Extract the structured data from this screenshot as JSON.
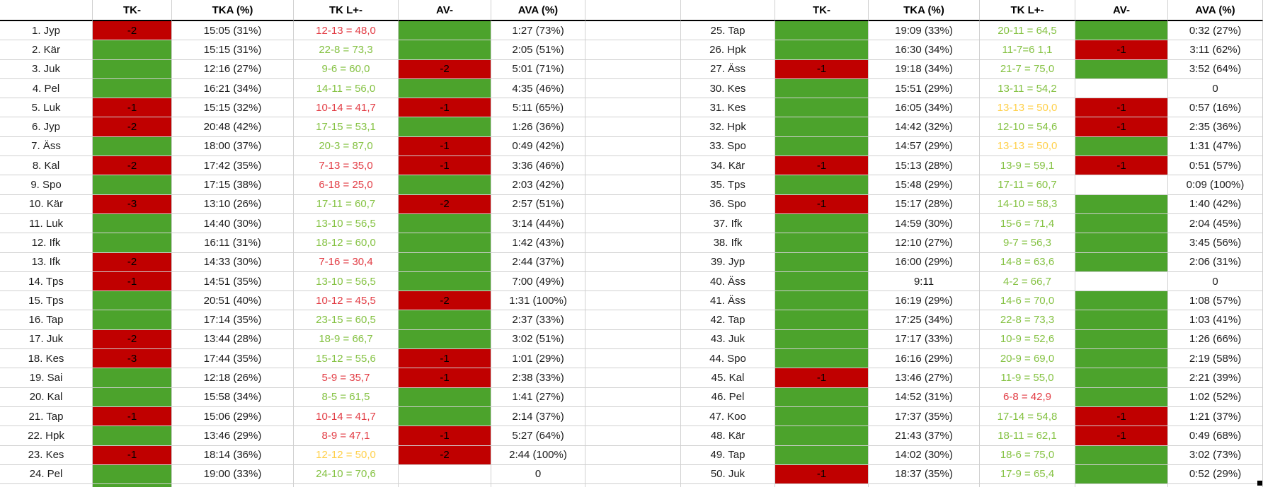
{
  "colors": {
    "fill_green": "#4CA32C",
    "fill_red": "#C00000",
    "text_green": "#85C243",
    "text_red": "#E23C44",
    "text_yellow": "#FFD04A",
    "grid": "#D0D0D0",
    "header_line": "#000000",
    "fill_handle": "#000000"
  },
  "table": {
    "headers": [
      "",
      "TK-",
      "TKA (%)",
      "TK L+-",
      "AV-",
      "AVA (%)"
    ],
    "left_rows": [
      {
        "name": "1. Jyp",
        "tk_fill": "red",
        "tk": "-2",
        "tka": "15:05 (31%)",
        "tkl": "12-13 = 48,0",
        "tkl_color": "red",
        "av_fill": "green",
        "av": "",
        "ava": "1:27 (73%)"
      },
      {
        "name": "2. Kär",
        "tk_fill": "green",
        "tk": "",
        "tka": "15:15 (31%)",
        "tkl": "22-8 = 73,3",
        "tkl_color": "green",
        "av_fill": "green",
        "av": "",
        "ava": "2:05 (51%)"
      },
      {
        "name": "3. Juk",
        "tk_fill": "green",
        "tk": "",
        "tka": "12:16 (27%)",
        "tkl": "9-6 = 60,0",
        "tkl_color": "green",
        "av_fill": "red",
        "av": "-2",
        "ava": "5:01 (71%)"
      },
      {
        "name": "4. Pel",
        "tk_fill": "green",
        "tk": "",
        "tka": "16:21 (34%)",
        "tkl": "14-11 = 56,0",
        "tkl_color": "green",
        "av_fill": "green",
        "av": "",
        "ava": "4:35 (46%)"
      },
      {
        "name": "5. Luk",
        "tk_fill": "red",
        "tk": "-1",
        "tka": "15:15 (32%)",
        "tkl": "10-14 = 41,7",
        "tkl_color": "red",
        "av_fill": "red",
        "av": "-1",
        "ava": "5:11 (65%)"
      },
      {
        "name": "6. Jyp",
        "tk_fill": "red",
        "tk": "-2",
        "tka": "20:48 (42%)",
        "tkl": "17-15 = 53,1",
        "tkl_color": "green",
        "av_fill": "green",
        "av": "",
        "ava": "1:26 (36%)"
      },
      {
        "name": "7. Äss",
        "tk_fill": "green",
        "tk": "",
        "tka": "18:00 (37%)",
        "tkl": "20-3 = 87,0",
        "tkl_color": "green",
        "av_fill": "red",
        "av": "-1",
        "ava": "0:49 (42%)"
      },
      {
        "name": "8. Kal",
        "tk_fill": "red",
        "tk": "-2",
        "tka": "17:42 (35%)",
        "tkl": "7-13 = 35,0",
        "tkl_color": "red",
        "av_fill": "red",
        "av": "-1",
        "ava": "3:36 (46%)"
      },
      {
        "name": "9. Spo",
        "tk_fill": "green",
        "tk": "",
        "tka": "17:15 (38%)",
        "tkl": "6-18 = 25,0",
        "tkl_color": "red",
        "av_fill": "green",
        "av": "",
        "ava": "2:03 (42%)"
      },
      {
        "name": "10. Kär",
        "tk_fill": "red",
        "tk": "-3",
        "tka": "13:10 (26%)",
        "tkl": "17-11 = 60,7",
        "tkl_color": "green",
        "av_fill": "red",
        "av": "-2",
        "ava": "2:57 (51%)"
      },
      {
        "name": "11. Luk",
        "tk_fill": "green",
        "tk": "",
        "tka": "14:40 (30%)",
        "tkl": "13-10 = 56,5",
        "tkl_color": "green",
        "av_fill": "green",
        "av": "",
        "ava": "3:14 (44%)"
      },
      {
        "name": "12. Ifk",
        "tk_fill": "green",
        "tk": "",
        "tka": "16:11 (31%)",
        "tkl": "18-12 = 60,0",
        "tkl_color": "green",
        "av_fill": "green",
        "av": "",
        "ava": "1:42 (43%)"
      },
      {
        "name": "13. Ifk",
        "tk_fill": "red",
        "tk": "-2",
        "tka": "14:33 (30%)",
        "tkl": "7-16 = 30,4",
        "tkl_color": "red",
        "av_fill": "green",
        "av": "",
        "ava": "2:44 (37%)"
      },
      {
        "name": "14. Tps",
        "tk_fill": "red",
        "tk": "-1",
        "tka": "14:51 (35%)",
        "tkl": "13-10 = 56,5",
        "tkl_color": "green",
        "av_fill": "green",
        "av": "",
        "ava": "7:00 (49%)"
      },
      {
        "name": "15. Tps",
        "tk_fill": "green",
        "tk": "",
        "tka": "20:51 (40%)",
        "tkl": "10-12 = 45,5",
        "tkl_color": "red",
        "av_fill": "red",
        "av": "-2",
        "ava": "1:31 (100%)"
      },
      {
        "name": "16. Tap",
        "tk_fill": "green",
        "tk": "",
        "tka": "17:14 (35%)",
        "tkl": "23-15 = 60,5",
        "tkl_color": "green",
        "av_fill": "green",
        "av": "",
        "ava": "2:37 (33%)"
      },
      {
        "name": "17. Juk",
        "tk_fill": "red",
        "tk": "-2",
        "tka": "13:44 (28%)",
        "tkl": "18-9 = 66,7",
        "tkl_color": "green",
        "av_fill": "green",
        "av": "",
        "ava": "3:02 (51%)"
      },
      {
        "name": "18. Kes",
        "tk_fill": "red",
        "tk": "-3",
        "tka": "17:44 (35%)",
        "tkl": "15-12 = 55,6",
        "tkl_color": "green",
        "av_fill": "red",
        "av": "-1",
        "ava": "1:01 (29%)"
      },
      {
        "name": "19. Sai",
        "tk_fill": "green",
        "tk": "",
        "tka": "12:18 (26%)",
        "tkl": "5-9 = 35,7",
        "tkl_color": "red",
        "av_fill": "red",
        "av": "-1",
        "ava": "2:38 (33%)"
      },
      {
        "name": "20. Kal",
        "tk_fill": "green",
        "tk": "",
        "tka": "15:58 (34%)",
        "tkl": "8-5 = 61,5",
        "tkl_color": "green",
        "av_fill": "green",
        "av": "",
        "ava": "1:41 (27%)"
      },
      {
        "name": "21. Tap",
        "tk_fill": "red",
        "tk": "-1",
        "tka": "15:06 (29%)",
        "tkl": "10-14 = 41,7",
        "tkl_color": "red",
        "av_fill": "green",
        "av": "",
        "ava": "2:14 (37%)"
      },
      {
        "name": "22. Hpk",
        "tk_fill": "green",
        "tk": "",
        "tka": "13:46 (29%)",
        "tkl": "8-9 = 47,1",
        "tkl_color": "red",
        "av_fill": "red",
        "av": "-1",
        "ava": "5:27 (64%)"
      },
      {
        "name": "23. Kes",
        "tk_fill": "red",
        "tk": "-1",
        "tka": "18:14 (36%)",
        "tkl": "12-12 = 50,0",
        "tkl_color": "yellow",
        "av_fill": "red",
        "av": "-2",
        "ava": "2:44 (100%)"
      },
      {
        "name": "24. Pel",
        "tk_fill": "green",
        "tk": "",
        "tka": "19:00 (33%)",
        "tkl": "24-10 = 70,6",
        "tkl_color": "green",
        "av_fill": "none",
        "av": "",
        "ava": "0"
      }
    ],
    "right_rows": [
      {
        "name": "25. Tap",
        "tk_fill": "green",
        "tk": "",
        "tka": "19:09 (33%)",
        "tkl": "20-11 = 64,5",
        "tkl_color": "green",
        "av_fill": "green",
        "av": "",
        "ava": "0:32 (27%)"
      },
      {
        "name": "26. Hpk",
        "tk_fill": "green",
        "tk": "",
        "tka": "16:30 (34%)",
        "tkl": "11-7=6 1,1",
        "tkl_color": "green",
        "av_fill": "red",
        "av": "-1",
        "ava": "3:11 (62%)"
      },
      {
        "name": "27. Äss",
        "tk_fill": "red",
        "tk": "-1",
        "tka": "19:18 (34%)",
        "tkl": "21-7 = 75,0",
        "tkl_color": "green",
        "av_fill": "green",
        "av": "",
        "ava": "3:52 (64%)"
      },
      {
        "name": "30. Kes",
        "tk_fill": "green",
        "tk": "",
        "tka": "15:51 (29%)",
        "tkl": "13-11 = 54,2",
        "tkl_color": "green",
        "av_fill": "none",
        "av": "",
        "ava": "0"
      },
      {
        "name": "31. Kes",
        "tk_fill": "green",
        "tk": "",
        "tka": "16:05 (34%)",
        "tkl": "13-13 = 50,0",
        "tkl_color": "yellow",
        "av_fill": "red",
        "av": "-1",
        "ava": "0:57 (16%)"
      },
      {
        "name": "32. Hpk",
        "tk_fill": "green",
        "tk": "",
        "tka": "14:42 (32%)",
        "tkl": "12-10 = 54,6",
        "tkl_color": "green",
        "av_fill": "red",
        "av": "-1",
        "ava": "2:35 (36%)"
      },
      {
        "name": "33. Spo",
        "tk_fill": "green",
        "tk": "",
        "tka": "14:57 (29%)",
        "tkl": "13-13 = 50,0",
        "tkl_color": "yellow",
        "av_fill": "green",
        "av": "",
        "ava": "1:31 (47%)"
      },
      {
        "name": "34. Kär",
        "tk_fill": "red",
        "tk": "-1",
        "tka": "15:13 (28%)",
        "tkl": "13-9 = 59,1",
        "tkl_color": "green",
        "av_fill": "red",
        "av": "-1",
        "ava": "0:51 (57%)"
      },
      {
        "name": "35. Tps",
        "tk_fill": "green",
        "tk": "",
        "tka": "15:48 (29%)",
        "tkl": "17-11 = 60,7",
        "tkl_color": "green",
        "av_fill": "none",
        "av": "",
        "ava": "0:09 (100%)"
      },
      {
        "name": "36. Spo",
        "tk_fill": "red",
        "tk": "-1",
        "tka": "15:17 (28%)",
        "tkl": "14-10 = 58,3",
        "tkl_color": "green",
        "av_fill": "green",
        "av": "",
        "ava": "1:40 (42%)"
      },
      {
        "name": "37. Ifk",
        "tk_fill": "green",
        "tk": "",
        "tka": "14:59 (30%)",
        "tkl": "15-6 = 71,4",
        "tkl_color": "green",
        "av_fill": "green",
        "av": "",
        "ava": "2:04 (45%)"
      },
      {
        "name": "38. Ifk",
        "tk_fill": "green",
        "tk": "",
        "tka": "12:10 (27%)",
        "tkl": "9-7 = 56,3",
        "tkl_color": "green",
        "av_fill": "green",
        "av": "",
        "ava": "3:45 (56%)"
      },
      {
        "name": "39. Jyp",
        "tk_fill": "green",
        "tk": "",
        "tka": "16:00 (29%)",
        "tkl": "14-8 = 63,6",
        "tkl_color": "green",
        "av_fill": "green",
        "av": "",
        "ava": "2:06 (31%)"
      },
      {
        "name": "40. Äss",
        "tk_fill": "green",
        "tk": "",
        "tka": "9:11",
        "tkl": "4-2 = 66,7",
        "tkl_color": "green",
        "av_fill": "none",
        "av": "",
        "ava": "0"
      },
      {
        "name": "41. Äss",
        "tk_fill": "green",
        "tk": "",
        "tka": "16:19 (29%)",
        "tkl": "14-6 = 70,0",
        "tkl_color": "green",
        "av_fill": "green",
        "av": "",
        "ava": "1:08 (57%)"
      },
      {
        "name": "42. Tap",
        "tk_fill": "green",
        "tk": "",
        "tka": "17:25 (34%)",
        "tkl": "22-8 = 73,3",
        "tkl_color": "green",
        "av_fill": "green",
        "av": "",
        "ava": "1:03 (41%)"
      },
      {
        "name": "43. Juk",
        "tk_fill": "green",
        "tk": "",
        "tka": "17:17 (33%)",
        "tkl": "10-9 = 52,6",
        "tkl_color": "green",
        "av_fill": "green",
        "av": "",
        "ava": "1:26 (66%)"
      },
      {
        "name": "44. Spo",
        "tk_fill": "green",
        "tk": "",
        "tka": "16:16 (29%)",
        "tkl": "20-9 = 69,0",
        "tkl_color": "green",
        "av_fill": "green",
        "av": "",
        "ava": "2:19 (58%)"
      },
      {
        "name": "45. Kal",
        "tk_fill": "red",
        "tk": "-1",
        "tka": "13:46 (27%)",
        "tkl": "11-9 = 55,0",
        "tkl_color": "green",
        "av_fill": "green",
        "av": "",
        "ava": "2:21 (39%)"
      },
      {
        "name": "46. Pel",
        "tk_fill": "green",
        "tk": "",
        "tka": "14:52 (31%)",
        "tkl": "6-8 = 42,9",
        "tkl_color": "red",
        "av_fill": "green",
        "av": "",
        "ava": "1:02 (52%)"
      },
      {
        "name": "47. Koo",
        "tk_fill": "green",
        "tk": "",
        "tka": "17:37 (35%)",
        "tkl": "17-14 = 54,8",
        "tkl_color": "green",
        "av_fill": "red",
        "av": "-1",
        "ava": "1:21 (37%)"
      },
      {
        "name": "48. Kär",
        "tk_fill": "green",
        "tk": "",
        "tka": "21:43 (37%)",
        "tkl": "18-11 = 62,1",
        "tkl_color": "green",
        "av_fill": "red",
        "av": "-1",
        "ava": "0:49 (68%)"
      },
      {
        "name": "49. Tap",
        "tk_fill": "green",
        "tk": "",
        "tka": "14:02 (30%)",
        "tkl": "18-6 = 75,0",
        "tkl_color": "green",
        "av_fill": "green",
        "av": "",
        "ava": "3:02 (73%)"
      },
      {
        "name": "50. Juk",
        "tk_fill": "red",
        "tk": "-1",
        "tka": "18:37 (35%)",
        "tkl": "17-9 = 65,4",
        "tkl_color": "green",
        "av_fill": "green",
        "av": "",
        "ava": "0:52 (29%)"
      }
    ],
    "partial_row": {
      "left_tk_fill": "green"
    }
  }
}
